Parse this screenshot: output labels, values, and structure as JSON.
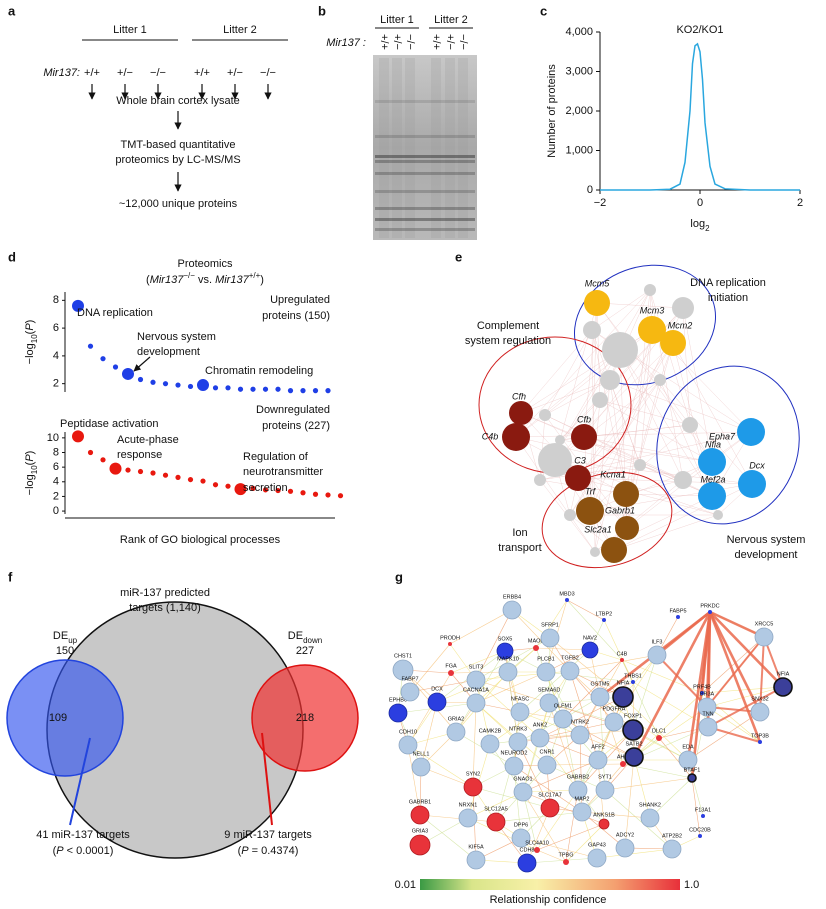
{
  "figure": {
    "a": {
      "label": "a",
      "litters": [
        "Litter 1",
        "Litter 2"
      ],
      "genotype_label": "Mir137:",
      "genotypes": [
        "+/+",
        "+/−",
        "−/−",
        "+/+",
        "+/−",
        "−/−"
      ],
      "steps": [
        "Whole brain cortex lysate",
        "TMT-based quantitative",
        "proteomics by LC-MS/MS",
        "~12,000 unique proteins"
      ]
    },
    "b": {
      "label": "b",
      "litters": [
        "Litter 1",
        "Litter 2"
      ],
      "genotype_label": "Mir137 :",
      "lanes": [
        "+/+",
        "+/−",
        "−/−",
        "+/+",
        "+/−",
        "−/−"
      ]
    },
    "c": {
      "label": "c"
    },
    "d": {
      "label": "d",
      "title": "Proteomics",
      "subtitle": [
        "(",
        "Mir137",
        "−/−",
        " vs. ",
        "Mir137",
        "+/+",
        ")"
      ],
      "ylabel": [
        "−log",
        "10",
        "(",
        "P",
        ")"
      ],
      "xlabel": "Rank of GO biological processes"
    },
    "e": {
      "label": "e",
      "groups": [
        [
          "DNA replication",
          "initiation"
        ],
        [
          "Complement",
          "system regulation"
        ],
        [
          "Ion",
          "transport"
        ],
        [
          "Nervous system",
          "development"
        ]
      ],
      "genes": [
        "Mcm5",
        "Mcm3",
        "Mcm2",
        "Cfh",
        "Cfb",
        "C4b",
        "C3",
        "Kcna1",
        "Trf",
        "Gabrb1",
        "Slc2a1",
        "Epha7",
        "Nfia",
        "Mef2a",
        "Dcx"
      ]
    },
    "f": {
      "label": "f",
      "title": [
        "miR-137 predicted",
        "targets (1,140)"
      ],
      "up": [
        "DE",
        "up"
      ],
      "up_count": "150",
      "down": [
        "DE",
        "down"
      ],
      "down_count": "227",
      "overlap_up": "109",
      "only_down": "218",
      "up_targets": [
        "41 miR-137 targets",
        "(",
        "P",
        " < 0.0001)"
      ],
      "down_targets": [
        "9 miR-137 targets",
        "(",
        "P",
        " = 0.4374)"
      ]
    },
    "g": {
      "label": "g",
      "genes": [
        "ERBB4",
        "MBD3",
        "LTBP2",
        "FABP5",
        "PRKDC",
        "XRCC5",
        "PRODH",
        "SOX5",
        "MAOB",
        "SFRP1",
        "NAV2",
        "C4B",
        "ILF3",
        "CHST1",
        "FGA",
        "SLIT3",
        "MAPK10",
        "PLCB1",
        "TGFB2",
        "THBS1",
        "GSTM5",
        "NFIA",
        "PRF4B",
        "EPHB6",
        "FABP7",
        "CACNA1A",
        "NFASC",
        "SEMA6D",
        "OLFM1",
        "DCX",
        "ANK2",
        "NTRK2",
        "NTRK3",
        "PDGFRA",
        "BR3A",
        "NFIA",
        "FOXP1",
        "DLC1",
        "TNN",
        "SNX32",
        "CDH10",
        "GRIA2",
        "CAMK2B",
        "NEUROD2",
        "CNR1",
        "AFF2",
        "AHI1",
        "SATB2",
        "EDA",
        "NELL1",
        "BTAF1",
        "GABRB2",
        "SYT1",
        "SYN2",
        "GNAO1",
        "SLC17A7",
        "MAP2",
        "ANKS1B",
        "SHANK2",
        "TOP3B",
        "F13A1",
        "CDC20B",
        "GABRB1",
        "NRXN1",
        "SLC12A5",
        "DPP6",
        "SLC4A10",
        "ADCY2",
        "ATP2B2",
        "GRIA3",
        "KIF5A",
        "CDH8",
        "TPBG",
        "GAP43"
      ],
      "colorbar_labels": [
        "0.01",
        "1.0"
      ],
      "colorbar_title": "Relationship confidence"
    }
  },
  "chart_data": [
    {
      "type": "line",
      "title": "KO2/KO1",
      "ylabel": "Number of proteins",
      "xlabel": [
        "log",
        "2"
      ],
      "color": "#2aa7df",
      "x": [
        -2,
        -1,
        -0.6,
        -0.4,
        -0.3,
        -0.2,
        -0.15,
        -0.1,
        -0.05,
        0,
        0.05,
        0.1,
        0.2,
        0.3,
        0.5,
        1,
        2
      ],
      "values": [
        0,
        0,
        20,
        150,
        700,
        2000,
        3200,
        3650,
        3700,
        3500,
        2800,
        1700,
        600,
        150,
        30,
        0,
        0
      ],
      "xlim": [
        -2,
        2
      ],
      "xticks": [
        {
          "value": -2,
          "label": "−2"
        },
        0,
        2
      ],
      "ylim": [
        0,
        4000
      ],
      "yticks": [
        0,
        {
          "value": 1000,
          "label": "1,000"
        },
        {
          "value": 2000,
          "label": "2,000"
        },
        {
          "value": 3000,
          "label": "3,000"
        },
        {
          "value": 4000,
          "label": "4,000"
        }
      ]
    },
    {
      "type": "dots",
      "color": "#1f3fe6",
      "values": [
        7.6,
        4.7,
        3.8,
        3.2,
        2.7,
        2.3,
        2.1,
        2.0,
        1.9,
        1.8,
        1.9,
        1.7,
        1.7,
        1.6,
        1.6,
        1.6,
        1.6,
        1.5,
        1.5,
        1.5,
        1.5
      ],
      "highlight": [
        0,
        4,
        10
      ],
      "ylim": [
        1.4,
        8.6
      ],
      "yticks": [
        2,
        4,
        6,
        8
      ],
      "annotations": [
        "DNA replication",
        "Nervous system",
        "development",
        "Chromatin remodeling"
      ],
      "legend": [
        "Upregulated",
        "proteins (150)"
      ]
    },
    {
      "type": "dots",
      "color": "#e8180f",
      "values": [
        10.2,
        8.0,
        7.0,
        5.8,
        5.6,
        5.4,
        5.2,
        4.9,
        4.6,
        4.3,
        4.1,
        3.6,
        3.4,
        3.0,
        3.1,
        2.9,
        2.8,
        2.7,
        2.5,
        2.3,
        2.2,
        2.1
      ],
      "highlight": [
        0,
        3,
        13
      ],
      "ylim": [
        -0.4,
        10.8
      ],
      "yticks": [
        0,
        2,
        4,
        6,
        8,
        10
      ],
      "annotations": [
        "Peptidase activation",
        "Acute-phase",
        "response",
        "Regulation of",
        "neurotransmitter",
        "secretion"
      ],
      "legend": [
        "Downregulated",
        "proteins (227)"
      ]
    }
  ]
}
